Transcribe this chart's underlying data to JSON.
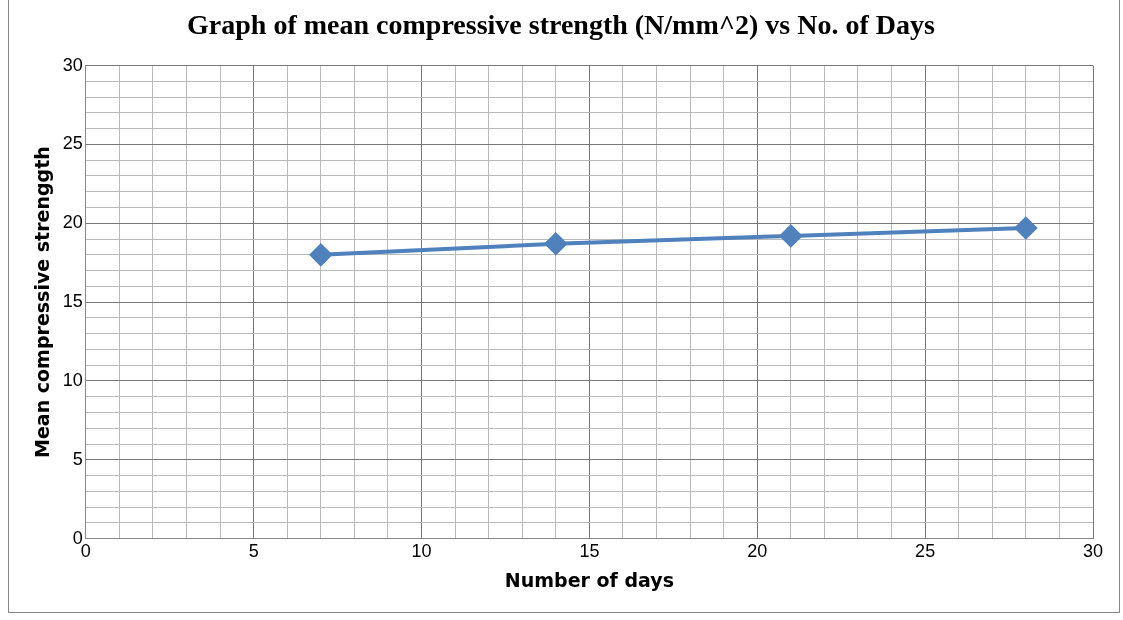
{
  "chart_data": {
    "type": "line",
    "title": "Graph of mean compressive strength (N/mm^2) vs No. of Days",
    "xlabel": "Number of days",
    "ylabel": "Mean compressive strenggth",
    "series": [
      {
        "color": "#4f81bd",
        "x": [
          7,
          14,
          21,
          28
        ],
        "values": [
          18.0,
          18.7,
          19.2,
          19.7
        ]
      }
    ],
    "xlim": [
      0,
      30
    ],
    "ylim": [
      0,
      30
    ],
    "xticks": [
      0,
      {
        "value": 1,
        "label": null
      },
      {
        "value": 2,
        "label": null
      },
      {
        "value": 3,
        "label": null
      },
      {
        "value": 4,
        "label": null
      },
      5,
      {
        "value": 6,
        "label": null
      },
      {
        "value": 7,
        "label": null
      },
      {
        "value": 8,
        "label": null
      },
      {
        "value": 9,
        "label": null
      },
      10,
      {
        "value": 11,
        "label": null
      },
      {
        "value": 12,
        "label": null
      },
      {
        "value": 13,
        "label": null
      },
      {
        "value": 14,
        "label": null
      },
      15,
      {
        "value": 16,
        "label": null
      },
      {
        "value": 17,
        "label": null
      },
      {
        "value": 18,
        "label": null
      },
      {
        "value": 19,
        "label": null
      },
      20,
      {
        "value": 21,
        "label": null
      },
      {
        "value": 22,
        "label": null
      },
      {
        "value": 23,
        "label": null
      },
      {
        "value": 24,
        "label": null
      },
      25,
      {
        "value": 26,
        "label": null
      },
      {
        "value": 27,
        "label": null
      },
      {
        "value": 28,
        "label": null
      },
      {
        "value": 29,
        "label": null
      },
      30
    ],
    "yticks": [
      0,
      {
        "value": 1,
        "label": null
      },
      {
        "value": 2,
        "label": null
      },
      {
        "value": 3,
        "label": null
      },
      {
        "value": 4,
        "label": null
      },
      5,
      {
        "value": 6,
        "label": null
      },
      {
        "value": 7,
        "label": null
      },
      {
        "value": 8,
        "label": null
      },
      {
        "value": 9,
        "label": null
      },
      10,
      {
        "value": 11,
        "label": null
      },
      {
        "value": 12,
        "label": null
      },
      {
        "value": 13,
        "label": null
      },
      {
        "value": 14,
        "label": null
      },
      15,
      {
        "value": 16,
        "label": null
      },
      {
        "value": 17,
        "label": null
      },
      {
        "value": 18,
        "label": null
      },
      {
        "value": 19,
        "label": null
      },
      20,
      {
        "value": 21,
        "label": null
      },
      {
        "value": 22,
        "label": null
      },
      {
        "value": 23,
        "label": null
      },
      {
        "value": 24,
        "label": null
      },
      25,
      {
        "value": 26,
        "label": null
      },
      {
        "value": 27,
        "label": null
      },
      {
        "value": 28,
        "label": null
      },
      {
        "value": 29,
        "label": null
      },
      30
    ],
    "grid": true,
    "legend": false,
    "marker": "diamond",
    "line_style": "solid"
  }
}
